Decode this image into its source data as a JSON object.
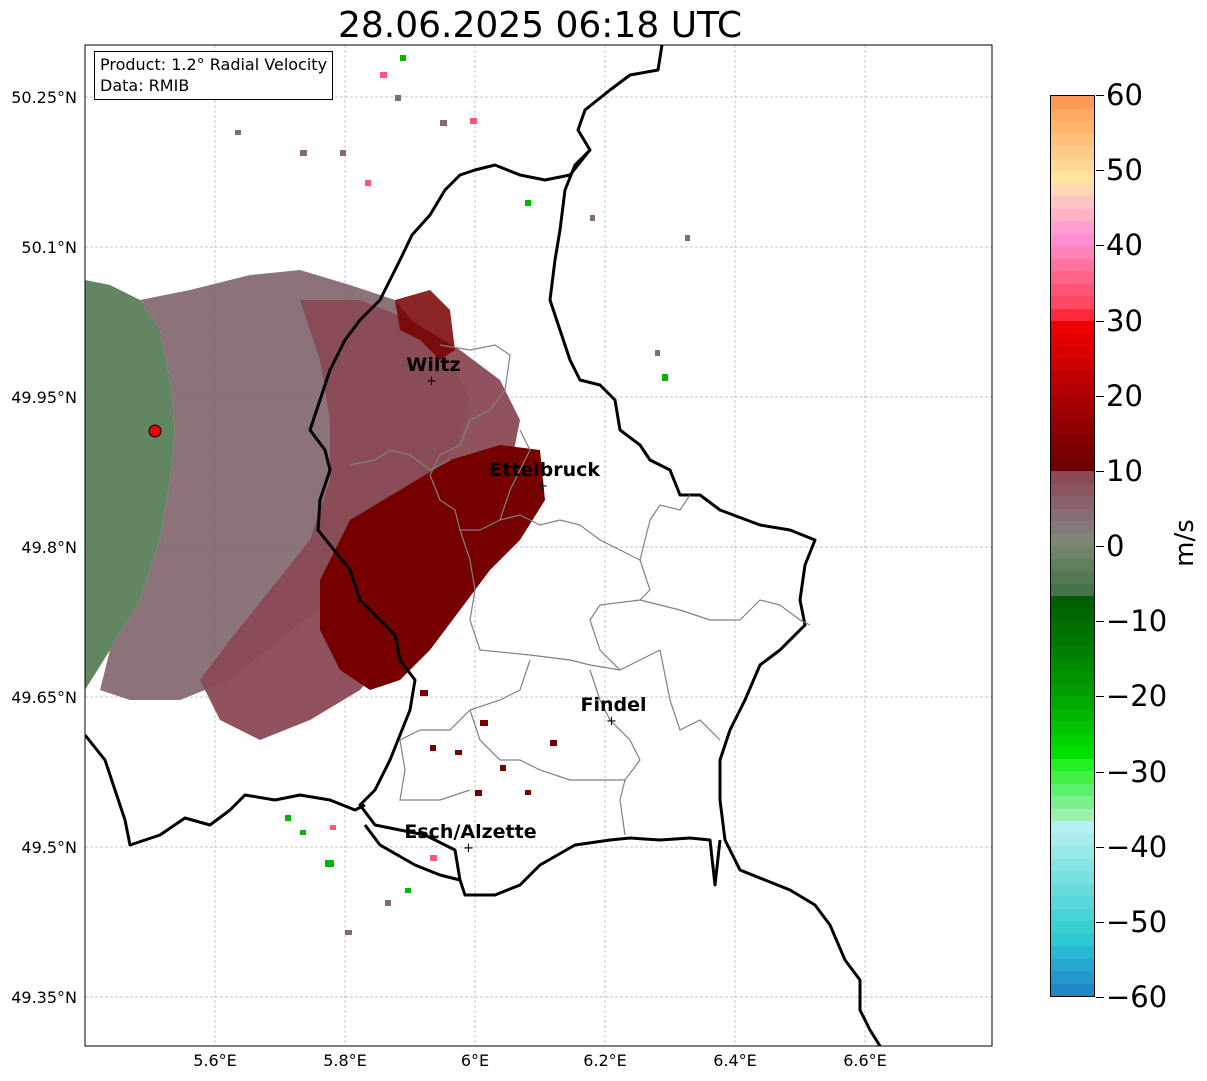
{
  "title": "28.06.2025 06:18 UTC",
  "info": {
    "product": "Product: 1.2° Radial Velocity",
    "data": "Data: RMIB"
  },
  "map": {
    "lon_range": [
      5.4,
      6.8
    ],
    "lat_range": [
      49.3,
      50.3
    ],
    "lon_ticks": [
      {
        "value": 5.6,
        "label": "5.6°E"
      },
      {
        "value": 5.8,
        "label": "5.8°E"
      },
      {
        "value": 6.0,
        "label": "6°E"
      },
      {
        "value": 6.2,
        "label": "6.2°E"
      },
      {
        "value": 6.4,
        "label": "6.4°E"
      },
      {
        "value": 6.6,
        "label": "6.6°E"
      }
    ],
    "lat_ticks": [
      {
        "value": 49.35,
        "label": "49.35°N"
      },
      {
        "value": 49.5,
        "label": "49.5°N"
      },
      {
        "value": 49.65,
        "label": "49.65°N"
      },
      {
        "value": 49.8,
        "label": "49.8°N"
      },
      {
        "value": 49.95,
        "label": "49.95°N"
      },
      {
        "value": 50.1,
        "label": "50.1°N"
      },
      {
        "value": 50.25,
        "label": "50.25°N"
      }
    ],
    "gridlines": true,
    "radar_site": {
      "lon": 5.505,
      "lat": 49.914,
      "color": "#e8000b"
    },
    "cities": [
      {
        "name": "Wiltz",
        "lon": 5.933,
        "lat": 49.967
      },
      {
        "name": "Ettelbruck",
        "lon": 6.104,
        "lat": 49.862
      },
      {
        "name": "Findel",
        "lon": 6.21,
        "lat": 49.627
      },
      {
        "name": "Esch/Alzette",
        "lon": 5.99,
        "lat": 49.5
      }
    ],
    "echo_regions": [
      {
        "name": "near-radar",
        "color": "#5b7f5a"
      },
      {
        "name": "outbound-weak",
        "color": "#866a72"
      },
      {
        "name": "outbound-moderate",
        "color": "#8a4a55"
      },
      {
        "name": "outbound-strong",
        "color": "#760000"
      }
    ]
  },
  "colorbar": {
    "unit": "m/s",
    "ticks": [
      {
        "value": 60,
        "label": "60"
      },
      {
        "value": 50,
        "label": "50"
      },
      {
        "value": 40,
        "label": "40"
      },
      {
        "value": 30,
        "label": "30"
      },
      {
        "value": 20,
        "label": "20"
      },
      {
        "value": 10,
        "label": "10"
      },
      {
        "value": 0,
        "label": "0"
      },
      {
        "value": -10,
        "label": "−10"
      },
      {
        "value": -20,
        "label": "−20"
      },
      {
        "value": -30,
        "label": "−30"
      },
      {
        "value": -40,
        "label": "−40"
      },
      {
        "value": -50,
        "label": "−50"
      },
      {
        "value": -60,
        "label": "−60"
      }
    ],
    "colors_top_to_bottom": [
      "#ff9a55",
      "#ffa860",
      "#ffb46b",
      "#ffc07a",
      "#ffcb88",
      "#ffd896",
      "#ffe4a0",
      "#ffd9b4",
      "#ffc3c3",
      "#ffb2c4",
      "#ff9ed2",
      "#ff8fd0",
      "#ff83b8",
      "#ff73a0",
      "#ff6388",
      "#ff5577",
      "#ff4766",
      "#fc2a3c",
      "#f00000",
      "#e40000",
      "#d80000",
      "#cc0000",
      "#c00000",
      "#b40000",
      "#a80000",
      "#9c0000",
      "#900000",
      "#840000",
      "#780000",
      "#6e0000",
      "#8a4a55",
      "#8b5660",
      "#8a626b",
      "#876e75",
      "#837a7c",
      "#7e8677",
      "#6f866a",
      "#60805c",
      "#537a52",
      "#467448",
      "#006000",
      "#006800",
      "#007000",
      "#007800",
      "#008000",
      "#008a00",
      "#009400",
      "#009e00",
      "#00aa00",
      "#00b600",
      "#00c400",
      "#00d200",
      "#00e000",
      "#22f022",
      "#44f044",
      "#5cf070",
      "#7cf08c",
      "#9cf0b0",
      "#b4f0f0",
      "#a8ecec",
      "#98e8e8",
      "#88e4e4",
      "#78e0e0",
      "#68dcdc",
      "#58d8d8",
      "#48d4d4",
      "#38d0d0",
      "#2cc8d4",
      "#28b8d4",
      "#24a8d0",
      "#2298cc",
      "#1e88c8"
    ]
  }
}
